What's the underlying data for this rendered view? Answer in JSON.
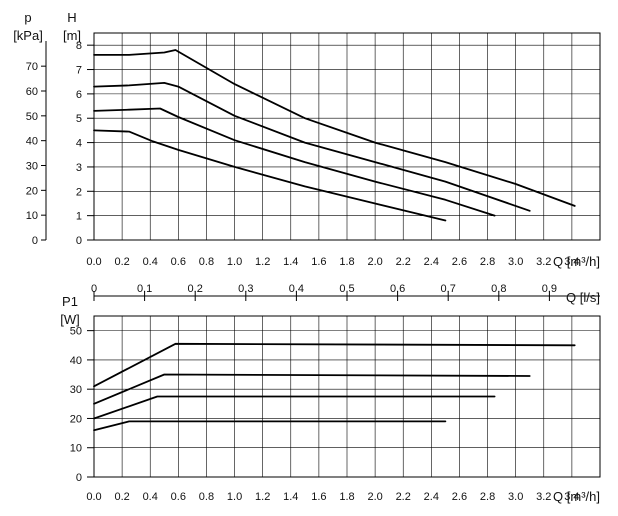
{
  "chart_data": [
    {
      "type": "line",
      "title": "",
      "xlabel": "Q [m³/h]",
      "x_unit_label": "Q [m³/h]",
      "ylabel_left": "p",
      "ylabel_left_unit": "[kPa]",
      "ylabel_right": "H",
      "ylabel_right_unit": "[m]",
      "xlim": [
        0,
        3.6
      ],
      "ylim": [
        0,
        8.5
      ],
      "grid": true,
      "x_ticks": [
        "0.0",
        "0.2",
        "0.4",
        "0.6",
        "0.8",
        "1.0",
        "1.2",
        "1.4",
        "1.6",
        "1.8",
        "2.0",
        "2.2",
        "2.4",
        "2.6",
        "2.8",
        "3.0",
        "3.2",
        "3.4"
      ],
      "h_ticks": [
        "0",
        "1",
        "2",
        "3",
        "4",
        "5",
        "6",
        "7",
        "8"
      ],
      "p_ticks": [
        "0",
        "10",
        "20",
        "30",
        "40",
        "50",
        "60",
        "70"
      ],
      "series": [
        {
          "x": [
            0,
            0.25,
            0.42,
            0.6,
            1.0,
            1.5,
            2.0,
            2.5
          ],
          "y": [
            4.5,
            4.45,
            4.05,
            3.7,
            3.0,
            2.2,
            1.5,
            0.8
          ]
        },
        {
          "x": [
            0,
            0.25,
            0.47,
            0.6,
            1.0,
            1.5,
            2.0,
            2.5,
            2.85
          ],
          "y": [
            5.3,
            5.35,
            5.4,
            5.05,
            4.1,
            3.2,
            2.4,
            1.65,
            1.0
          ]
        },
        {
          "x": [
            0,
            0.25,
            0.5,
            0.6,
            1.0,
            1.5,
            2.0,
            2.5,
            3.1
          ],
          "y": [
            6.3,
            6.35,
            6.45,
            6.3,
            5.1,
            4.0,
            3.2,
            2.4,
            1.2
          ]
        },
        {
          "x": [
            0,
            0.25,
            0.5,
            0.58,
            1.0,
            1.5,
            2.0,
            2.5,
            3.0,
            3.42
          ],
          "y": [
            7.6,
            7.6,
            7.7,
            7.8,
            6.4,
            5.0,
            4.0,
            3.2,
            2.3,
            1.4
          ]
        }
      ]
    },
    {
      "type": "line",
      "title": "",
      "xlabel": "Q [m³/h]",
      "x_unit_label": "Q [m³/h]",
      "ylabel": "P1",
      "ylabel_unit": "[W]",
      "xlim": [
        0,
        3.6
      ],
      "ylim": [
        0,
        55
      ],
      "grid": true,
      "x_ticks": [
        "0.0",
        "0.2",
        "0.4",
        "0.6",
        "0.8",
        "1.0",
        "1.2",
        "1.4",
        "1.6",
        "1.8",
        "2.0",
        "2.2",
        "2.4",
        "2.6",
        "2.8",
        "3.0",
        "3.2",
        "3.4"
      ],
      "y_ticks": [
        "0",
        "10",
        "20",
        "30",
        "40",
        "50"
      ],
      "series": [
        {
          "x": [
            0,
            0.25,
            2.5
          ],
          "y": [
            16,
            19,
            19
          ]
        },
        {
          "x": [
            0,
            0.45,
            2.85
          ],
          "y": [
            20,
            27.5,
            27.5
          ]
        },
        {
          "x": [
            0,
            0.5,
            3.1
          ],
          "y": [
            25,
            35,
            34.5
          ]
        },
        {
          "x": [
            0,
            0.58,
            3.42
          ],
          "y": [
            31,
            45.5,
            45
          ]
        }
      ]
    }
  ],
  "secondary_axis": {
    "label": "Q [l/s]",
    "ticks": [
      "0",
      "0.1",
      "0.2",
      "0.3",
      "0.4",
      "0.5",
      "0.6",
      "0.7",
      "0.8",
      "0.9"
    ]
  }
}
